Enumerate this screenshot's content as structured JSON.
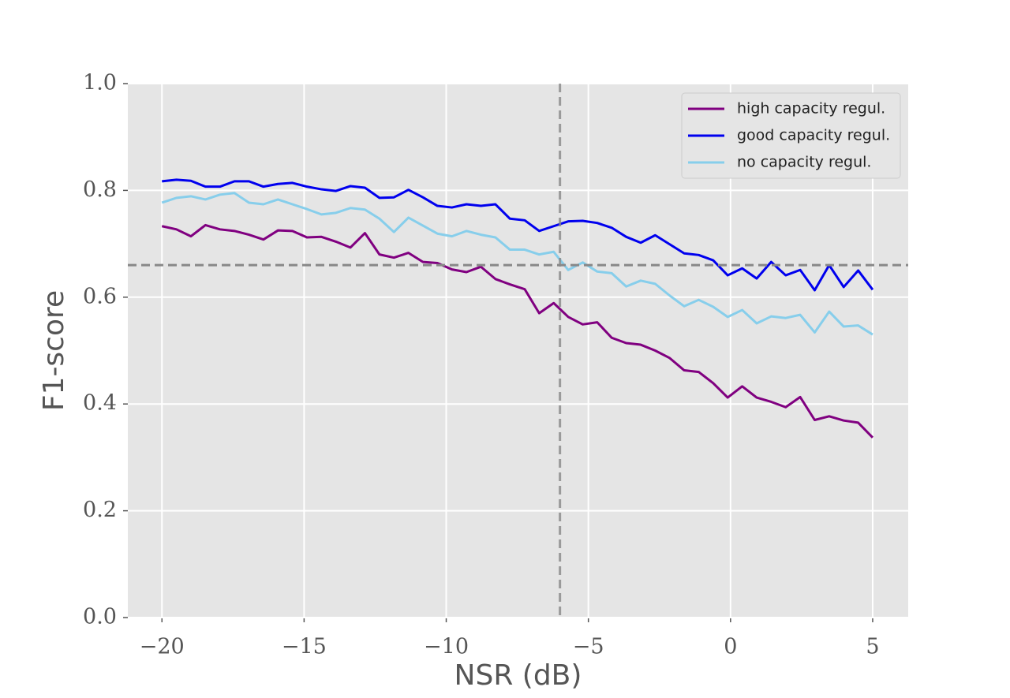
{
  "chart_data": {
    "type": "line",
    "x": [
      -20,
      -19.49,
      -18.98,
      -18.47,
      -17.96,
      -17.45,
      -16.94,
      -16.43,
      -15.92,
      -15.41,
      -14.9,
      -14.39,
      -13.88,
      -13.37,
      -12.86,
      -12.35,
      -11.84,
      -11.33,
      -10.82,
      -10.31,
      -9.8,
      -9.29,
      -8.78,
      -8.27,
      -7.76,
      -7.24,
      -6.73,
      -6.22,
      -5.71,
      -5.2,
      -4.69,
      -4.18,
      -3.67,
      -3.16,
      -2.65,
      -2.14,
      -1.63,
      -1.12,
      -0.61,
      -0.1,
      0.41,
      0.92,
      1.43,
      1.94,
      2.45,
      2.96,
      3.47,
      3.98,
      4.49,
      5
    ],
    "series": [
      {
        "name": "high capacity regul.",
        "color": "#800080",
        "values": [
          0.733,
          0.727,
          0.714,
          0.735,
          0.727,
          0.724,
          0.717,
          0.708,
          0.725,
          0.724,
          0.712,
          0.713,
          0.704,
          0.693,
          0.72,
          0.68,
          0.674,
          0.683,
          0.666,
          0.664,
          0.652,
          0.647,
          0.657,
          0.634,
          0.624,
          0.615,
          0.57,
          0.589,
          0.563,
          0.549,
          0.553,
          0.524,
          0.514,
          0.511,
          0.5,
          0.486,
          0.463,
          0.46,
          0.439,
          0.412,
          0.433,
          0.412,
          0.404,
          0.394,
          0.413,
          0.37,
          0.377,
          0.369,
          0.365,
          0.337
        ]
      },
      {
        "name": "good capacity regul.",
        "color": "#0000ee",
        "values": [
          0.817,
          0.82,
          0.818,
          0.807,
          0.807,
          0.817,
          0.817,
          0.807,
          0.812,
          0.814,
          0.807,
          0.802,
          0.799,
          0.808,
          0.805,
          0.786,
          0.787,
          0.801,
          0.787,
          0.771,
          0.768,
          0.774,
          0.771,
          0.774,
          0.747,
          0.744,
          0.724,
          0.733,
          0.742,
          0.743,
          0.739,
          0.73,
          0.713,
          0.702,
          0.716,
          0.699,
          0.682,
          0.679,
          0.669,
          0.641,
          0.654,
          0.635,
          0.666,
          0.641,
          0.651,
          0.613,
          0.66,
          0.619,
          0.65,
          0.614
        ]
      },
      {
        "name": "no capacity regul.",
        "color": "#87ceeb",
        "values": [
          0.777,
          0.786,
          0.789,
          0.783,
          0.792,
          0.795,
          0.777,
          0.774,
          0.783,
          0.774,
          0.765,
          0.755,
          0.758,
          0.767,
          0.764,
          0.747,
          0.722,
          0.749,
          0.734,
          0.719,
          0.714,
          0.724,
          0.717,
          0.712,
          0.689,
          0.689,
          0.68,
          0.685,
          0.651,
          0.665,
          0.648,
          0.645,
          0.62,
          0.631,
          0.625,
          0.603,
          0.583,
          0.595,
          0.582,
          0.563,
          0.576,
          0.551,
          0.564,
          0.561,
          0.567,
          0.534,
          0.573,
          0.545,
          0.547,
          0.53
        ]
      }
    ],
    "xlabel": "NSR (dB)",
    "ylabel": "F1-score",
    "xlim": [
      -21.2,
      6.25
    ],
    "ylim": [
      0,
      1
    ],
    "xticks": [
      {
        "value": -20,
        "label": "−20"
      },
      {
        "value": -15,
        "label": "−15"
      },
      {
        "value": -10,
        "label": "−10"
      },
      {
        "value": -5,
        "label": "−5"
      },
      0,
      5
    ],
    "yticks": [
      {
        "value": 0,
        "label": "0.0"
      },
      0.2,
      0.4,
      0.6,
      0.8,
      {
        "value": 1,
        "label": "1.0"
      }
    ],
    "grid": true,
    "legend": "upper right",
    "hlines": [
      0.66
    ],
    "vlines": [
      -6
    ],
    "ref_color": "#888888"
  }
}
